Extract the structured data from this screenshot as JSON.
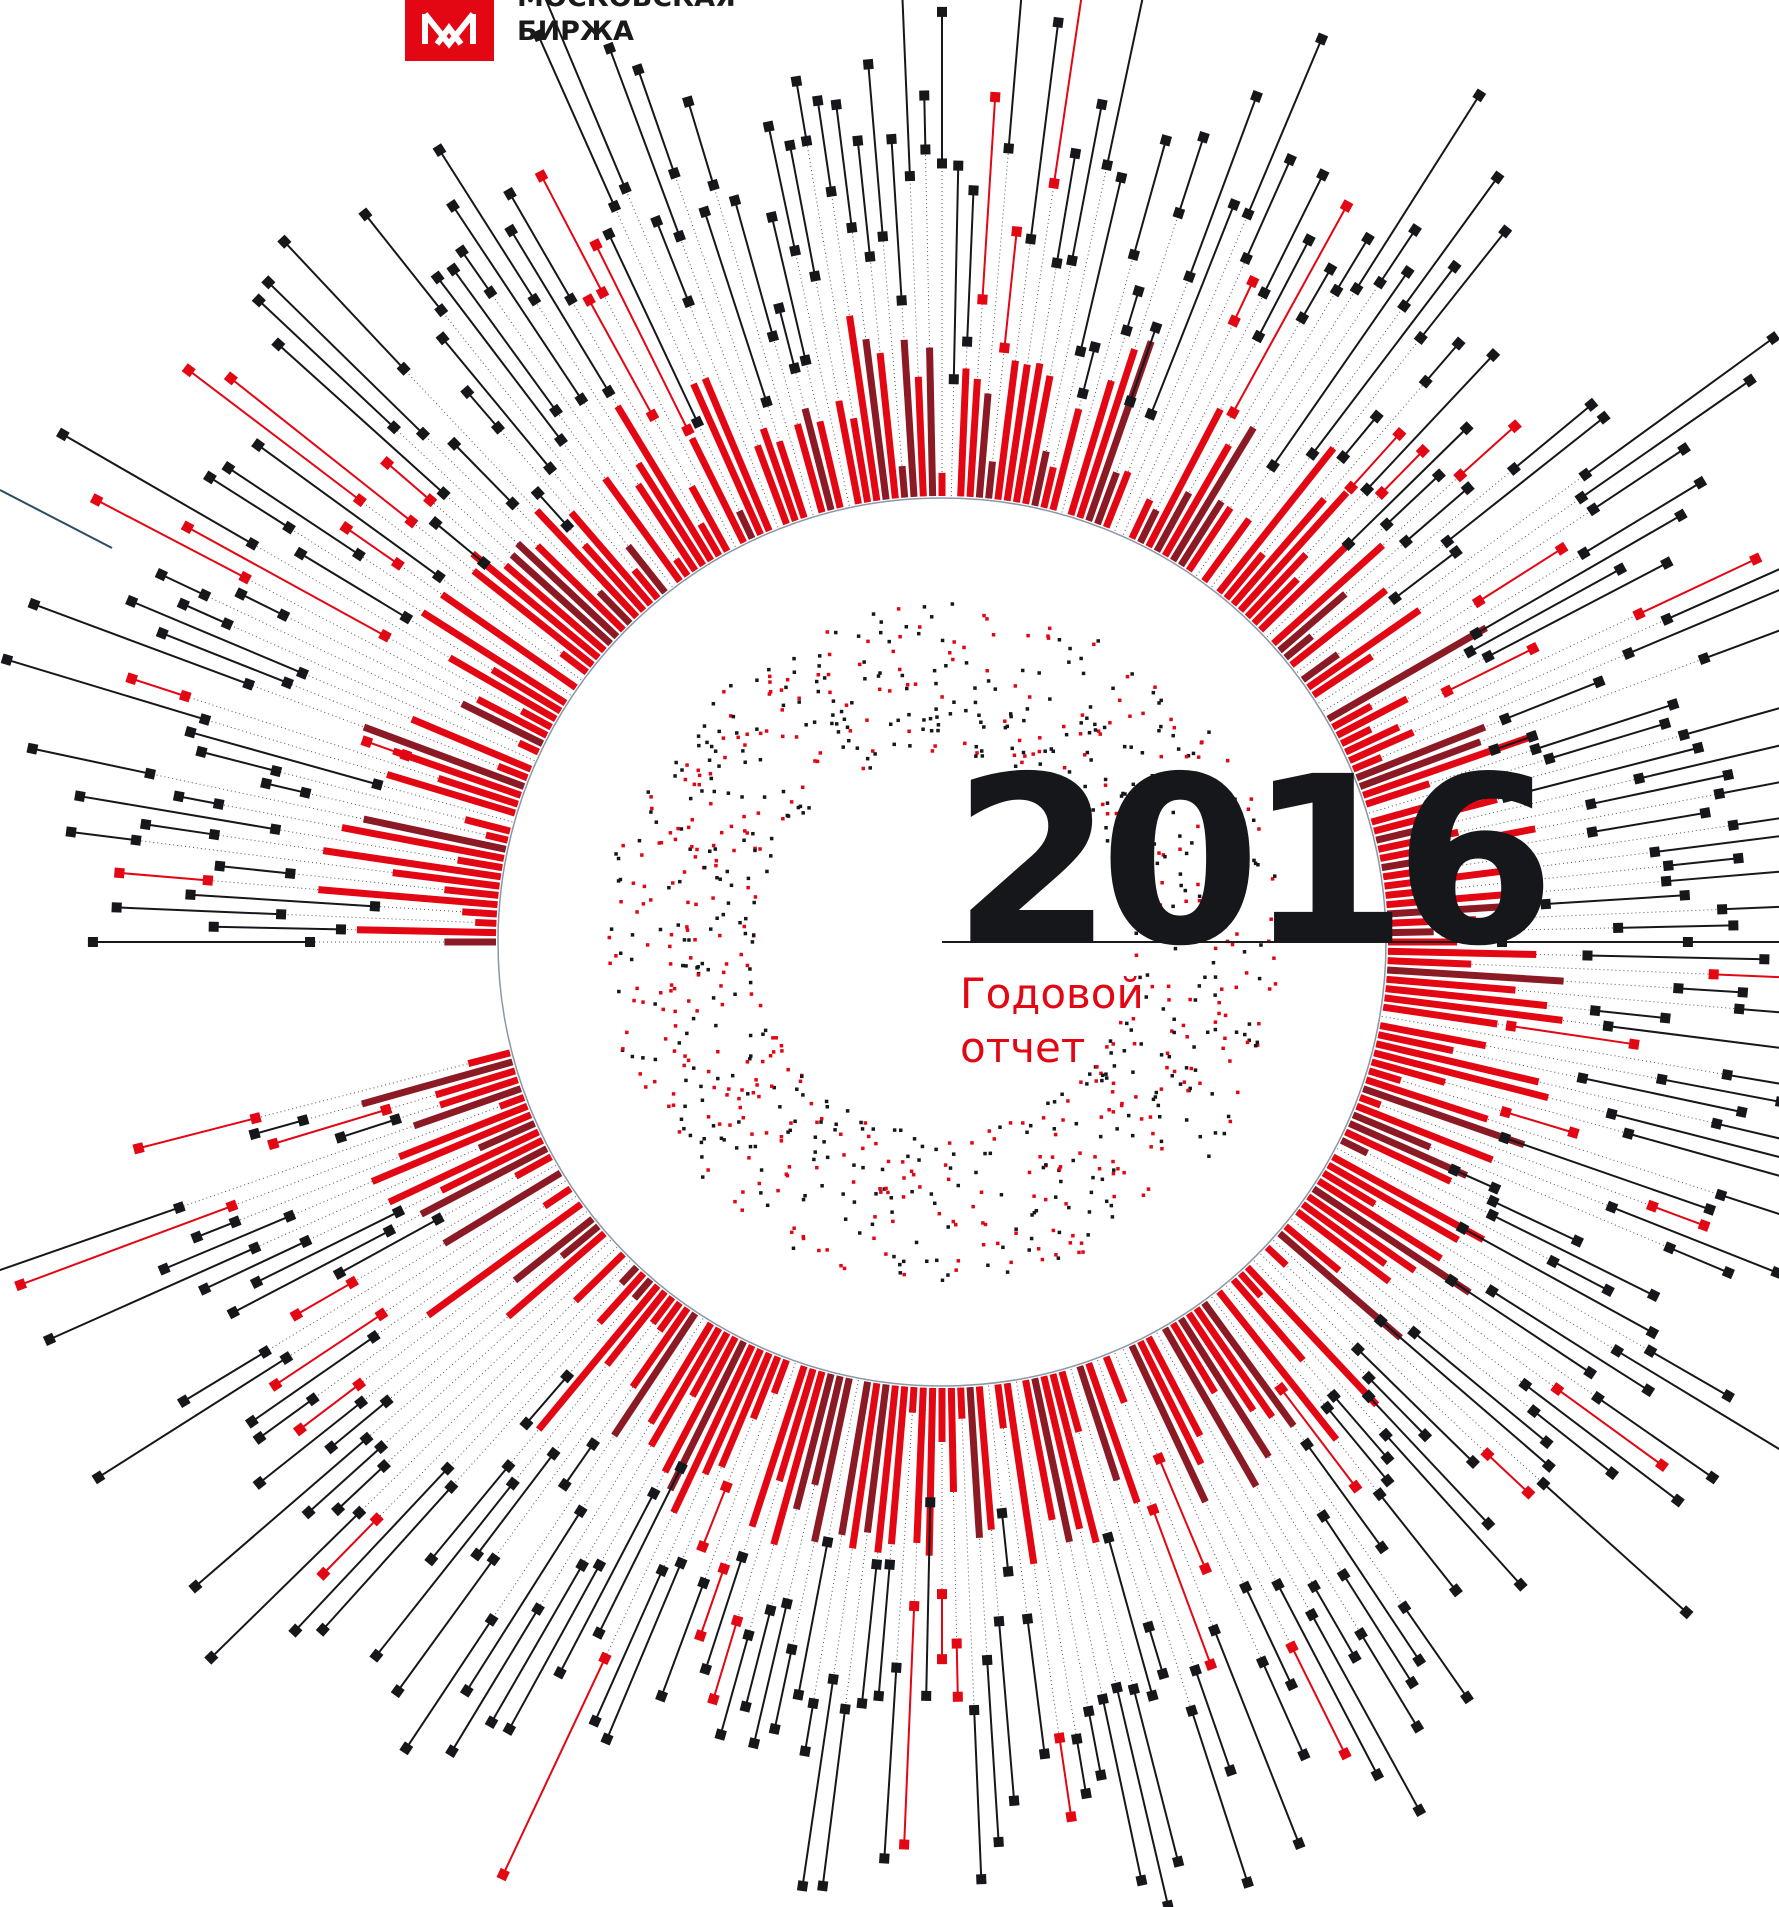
{
  "logo": {
    "line1": "МОСКОВСКАЯ",
    "line2": "БИРЖА"
  },
  "cover": {
    "year": "2016",
    "title_line1": "Годовой",
    "title_line2": "отчет"
  }
}
